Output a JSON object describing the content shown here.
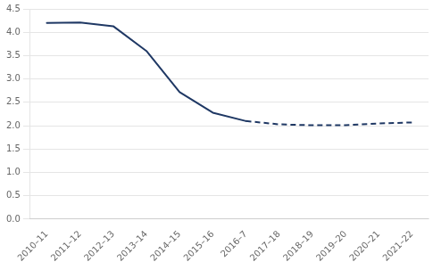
{
  "chart_data": {
    "type": "line",
    "categories": [
      "2010–11",
      "2011–12",
      "2012–13",
      "2013–14",
      "2014–15",
      "2015–16",
      "2016–7",
      "2017–18",
      "2018–19",
      "2019–20",
      "2020–21",
      "2021–22"
    ],
    "series": [
      {
        "color": "#1f3864",
        "line_style": "solid",
        "values": [
          4.2,
          4.21,
          4.13,
          3.6,
          2.72,
          2.28,
          2.1,
          null,
          null,
          null,
          null,
          null
        ]
      },
      {
        "color": "#1f3864",
        "line_style": "dashed",
        "values": [
          null,
          null,
          null,
          null,
          null,
          null,
          2.1,
          2.03,
          2.01,
          2.01,
          2.05,
          2.07
        ]
      }
    ],
    "ylim": [
      0.0,
      4.5
    ],
    "yticks": [
      {
        "value": 0.0,
        "label": "0.0"
      },
      0.5,
      {
        "value": 1.0,
        "label": "1.0"
      },
      1.5,
      {
        "value": 2.0,
        "label": "2.0"
      },
      2.5,
      {
        "value": 3.0,
        "label": "3.0"
      },
      3.5,
      {
        "value": 4.0,
        "label": "4.0"
      },
      4.5
    ],
    "grid": true
  }
}
